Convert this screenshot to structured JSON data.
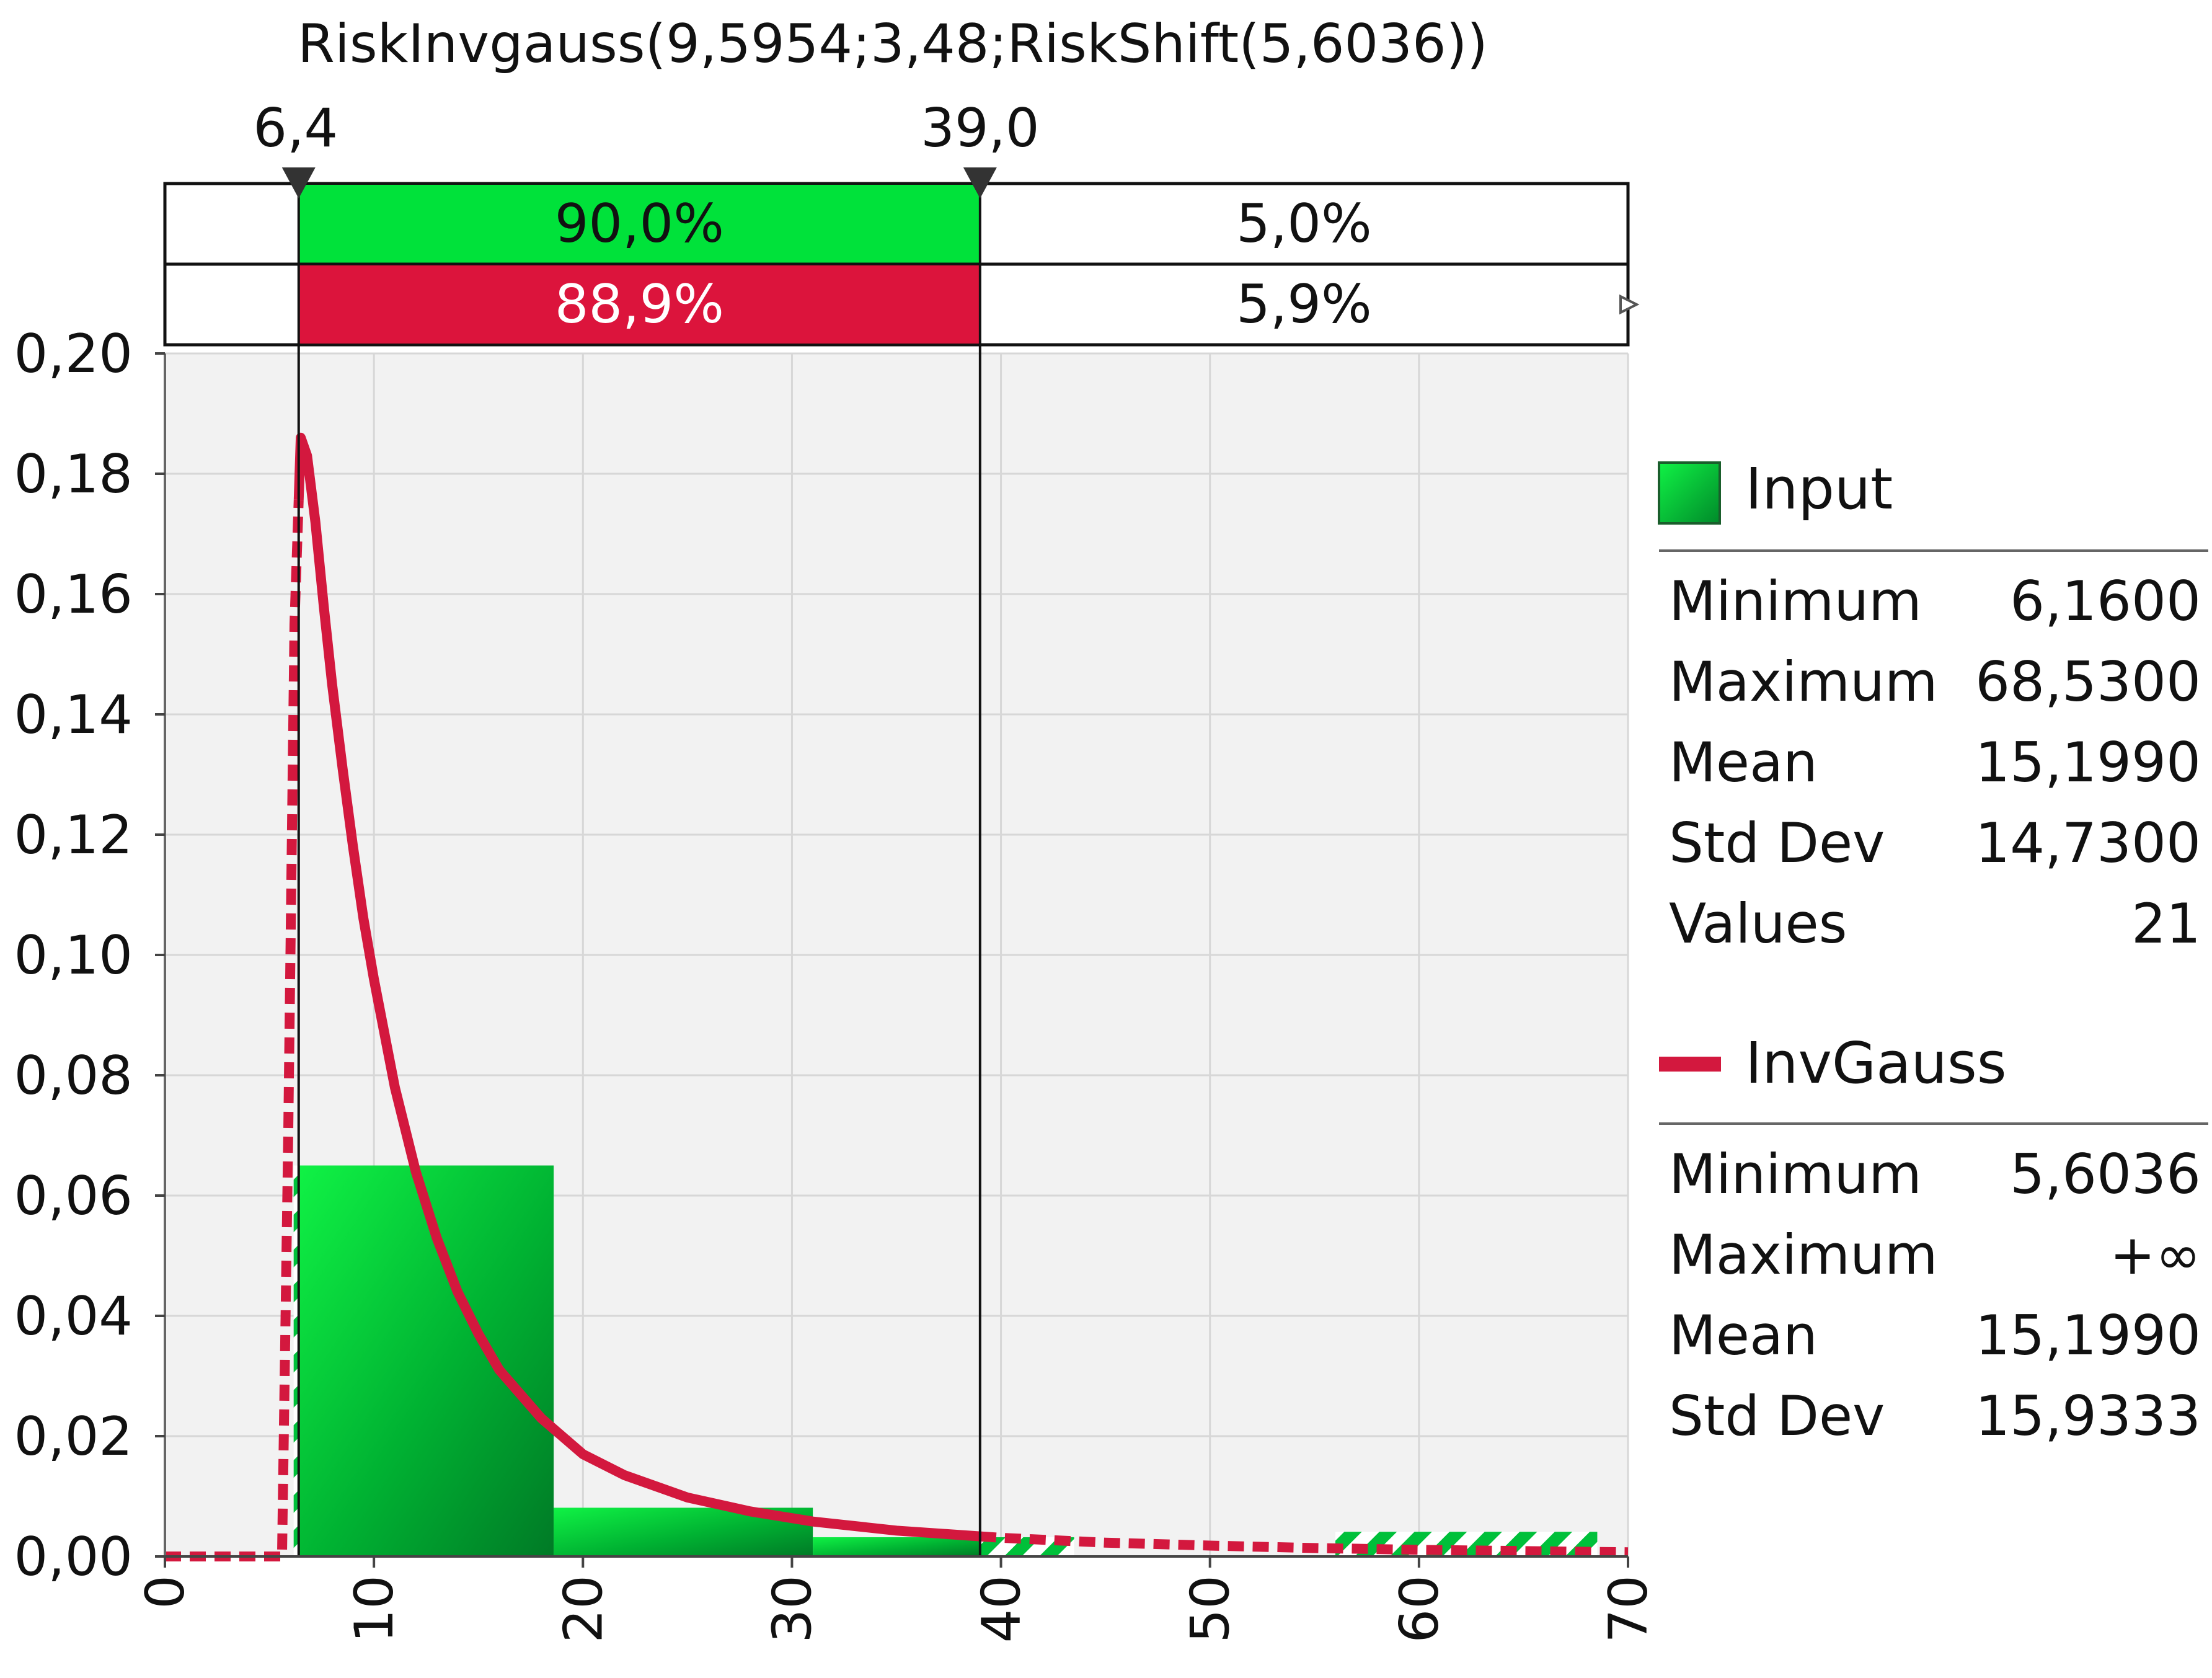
{
  "chart_data": {
    "type": "bar",
    "title": "RiskInvgauss(9,5954;3,48;RiskShift(5,6036))",
    "xlabel": "",
    "ylabel": "",
    "xlim": [
      0,
      70
    ],
    "ylim": [
      0,
      0.2
    ],
    "x_ticks": [
      "0",
      "10",
      "20",
      "30",
      "40",
      "50",
      "60",
      "70"
    ],
    "y_ticks": [
      "0,00",
      "0,02",
      "0,04",
      "0,06",
      "0,08",
      "0,10",
      "0,12",
      "0,14",
      "0,16",
      "0,18",
      "0,20"
    ],
    "grid": true,
    "delimiters": {
      "left": {
        "value": 6.4,
        "label": "6,4"
      },
      "right": {
        "value": 39.0,
        "label": "39,0"
      }
    },
    "probability_bars": {
      "input": {
        "middle": "90,0%",
        "right": "5,0%"
      },
      "fit": {
        "middle": "88,9%",
        "right": "5,9%"
      }
    },
    "histogram": {
      "name": "Input",
      "bins": [
        {
          "x0": 6.16,
          "x1": 18.6,
          "value": 0.065
        },
        {
          "x0": 18.6,
          "x1": 31.0,
          "value": 0.0081
        },
        {
          "x0": 31.0,
          "x1": 43.5,
          "value": 0.0032
        },
        {
          "x0": 43.5,
          "x1": 56.0,
          "value": 0.0
        },
        {
          "x0": 56.0,
          "x1": 68.53,
          "value": 0.0041
        }
      ]
    },
    "fit_curve": {
      "name": "InvGauss",
      "x": [
        0,
        5.6036,
        5.9,
        6.2,
        6.5,
        6.8,
        7.2,
        7.6,
        8.0,
        8.5,
        9.0,
        9.5,
        10,
        11,
        12,
        13,
        14,
        15,
        16,
        18,
        20,
        22,
        25,
        28,
        31,
        35,
        40,
        45,
        50,
        55,
        60,
        65,
        70
      ],
      "y": [
        0,
        0,
        0.07,
        0.155,
        0.186,
        0.183,
        0.172,
        0.158,
        0.145,
        0.131,
        0.118,
        0.106,
        0.096,
        0.078,
        0.064,
        0.053,
        0.044,
        0.037,
        0.031,
        0.023,
        0.017,
        0.0135,
        0.0098,
        0.0075,
        0.0058,
        0.0043,
        0.0031,
        0.0023,
        0.0018,
        0.0014,
        0.0011,
        0.0009,
        0.0007
      ]
    },
    "legend": {
      "placement": "right",
      "input": {
        "name": "Input",
        "stats": [
          {
            "label": "Minimum",
            "value": "6,1600"
          },
          {
            "label": "Maximum",
            "value": "68,5300"
          },
          {
            "label": "Mean",
            "value": "15,1990"
          },
          {
            "label": "Std Dev",
            "value": "14,7300"
          },
          {
            "label": "Values",
            "value": "21"
          }
        ]
      },
      "fit": {
        "name": "InvGauss",
        "stats": [
          {
            "label": "Minimum",
            "value": "5,6036"
          },
          {
            "label": "Maximum",
            "value": "+∞"
          },
          {
            "label": "Mean",
            "value": "15,1990"
          },
          {
            "label": "Std Dev",
            "value": "15,9333"
          }
        ]
      }
    },
    "colors": {
      "input_bar": "#00e23a",
      "input_bar_dark": "#00822a",
      "fit_curve": "#d3183e",
      "fit_bar": "#dc143c",
      "plot_bg": "#f2f2f2",
      "grid": "#d7d7d7"
    }
  }
}
